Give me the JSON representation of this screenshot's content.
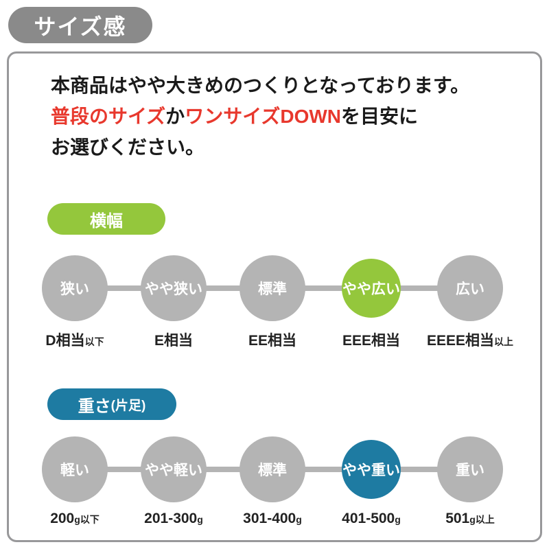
{
  "title_badge": "サイズ感",
  "description": {
    "line1": "本商品はやや大きめのつくりとなっております。",
    "line2_red1": "普段のサイズ",
    "line2_black1": "か",
    "line2_red2": "ワンサイズDOWN",
    "line2_black2": "を目安に",
    "line3": "お選びください。"
  },
  "colors": {
    "badge_gray": "#8a8a8a",
    "panel_border": "#98989a",
    "circle_gray": "#b4b4b4",
    "accent_green": "#94c73c",
    "accent_teal": "#1e7ba2",
    "accent_red": "#e8382d"
  },
  "sections": [
    {
      "pill_label": "横幅",
      "pill_suffix": "",
      "scale": [
        {
          "circle": "狭い",
          "label": "D相当",
          "suffix": "以下",
          "highlighted": false
        },
        {
          "circle": "やや狭い",
          "label": "E相当",
          "suffix": "",
          "highlighted": false
        },
        {
          "circle": "標準",
          "label": "EE相当",
          "suffix": "",
          "highlighted": false
        },
        {
          "circle": "やや広い",
          "label": "EEE相当",
          "suffix": "",
          "highlighted": true
        },
        {
          "circle": "広い",
          "label": "EEEE相当",
          "suffix": "以上",
          "highlighted": false
        }
      ]
    },
    {
      "pill_label": "重さ",
      "pill_suffix": "(片足)",
      "scale": [
        {
          "circle": "軽い",
          "label": "200",
          "suffix": "g以下",
          "highlighted": false
        },
        {
          "circle": "やや軽い",
          "label": "201-300",
          "suffix": "g",
          "highlighted": false
        },
        {
          "circle": "標準",
          "label": "301-400",
          "suffix": "g",
          "highlighted": false
        },
        {
          "circle": "やや重い",
          "label": "401-500",
          "suffix": "g",
          "highlighted": true
        },
        {
          "circle": "重い",
          "label": "501",
          "suffix": "g以上",
          "highlighted": false
        }
      ]
    }
  ]
}
